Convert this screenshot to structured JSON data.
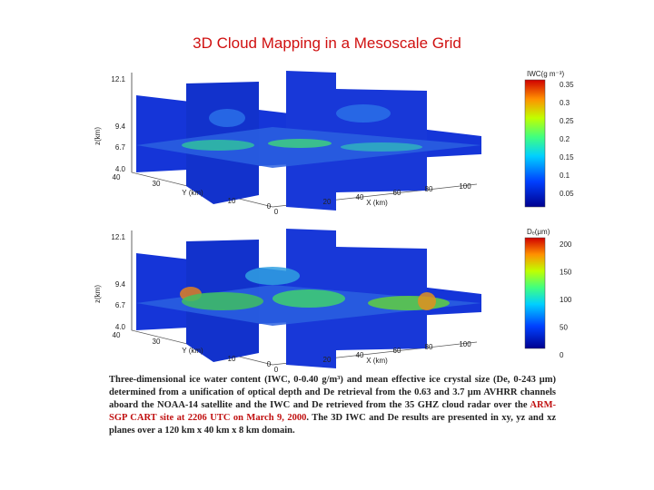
{
  "title": "3D Cloud Mapping in a Mesoscale Grid",
  "panels": [
    {
      "colorbar_label": "IWC(g m⁻³)",
      "colorbar_ticks": [
        "0.35",
        "0.3",
        "0.25",
        "0.2",
        "0.15",
        "0.1",
        "0.05"
      ],
      "z_label": "z(km)",
      "z_ticks": [
        "12.1",
        "9.4",
        "6.7",
        "4.0"
      ],
      "y_label": "Y (km)",
      "y_ticks": [
        "40",
        "30",
        "10",
        "0"
      ],
      "x_label": "X (km)",
      "x_ticks": [
        "0",
        "20",
        "40",
        "60",
        "80",
        "100"
      ]
    },
    {
      "colorbar_label": "Dₑ(μm)",
      "colorbar_ticks": [
        "200",
        "150",
        "100",
        "50",
        "0"
      ],
      "z_label": "z(km)",
      "z_ticks": [
        "12.1",
        "9.4",
        "6.7",
        "4.0"
      ],
      "y_label": "Y (km)",
      "y_ticks": [
        "40",
        "30",
        "10",
        "0"
      ],
      "x_label": "X (km)",
      "x_ticks": [
        "0",
        "20",
        "40",
        "60",
        "80",
        "100"
      ]
    }
  ],
  "caption": {
    "part1": "Three-dimensional ice water content (IWC, 0-0.40 g/m³) and mean effective ice crystal size (De, 0-243 μm) determined from a unification of optical depth and De retrieval from the 0.63 and 3.7 μm AVHRR channels aboard the NOAA-14 satellite and the IWC and De retrieved from the 35 GHZ cloud radar over the ",
    "highlight": "ARM-SGP CART site at 2206 UTC on March 9, 2000",
    "part2": ". The 3D IWC and De results are presented in xy, yz and xz planes over a 120 km x 40 km x 8 km domain."
  }
}
